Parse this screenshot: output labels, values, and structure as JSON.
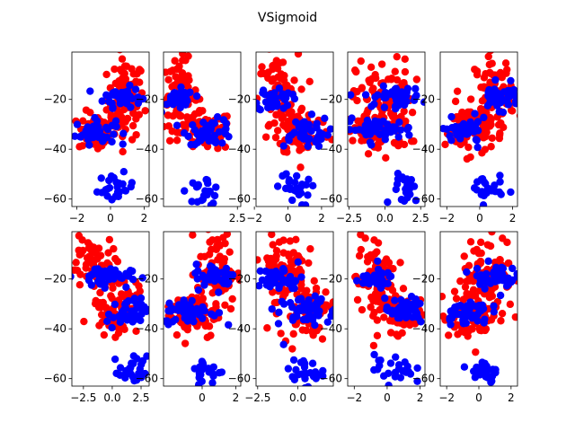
{
  "title": "VSigmoid",
  "colors": {
    "series_a": "#ff0000",
    "series_b": "#0000ff",
    "spine": "#000000"
  },
  "chart_data": {
    "type": "scatter",
    "title": "VSigmoid",
    "layout": "2 rows x 5 columns",
    "grid": false,
    "legend": "none",
    "series_colors": [
      "red",
      "blue"
    ],
    "panels": [
      {
        "row": 1,
        "col": 1,
        "xlim": [
          -2.3,
          2.3
        ],
        "ylim": [
          -63,
          -1
        ],
        "xticks": [
          -2,
          0,
          2
        ],
        "xtick_labels": [
          "−2",
          "0",
          "2"
        ],
        "yticks": [
          -20,
          -40,
          -60
        ],
        "ytick_labels": [
          "−20",
          "−40",
          "−60"
        ],
        "clusters": [
          {
            "series": 0,
            "cx": 0.9,
            "cy": -20,
            "sx": 0.55,
            "sy": 8,
            "n": 90
          },
          {
            "series": 0,
            "cx": -0.8,
            "cy": -33,
            "sx": 0.55,
            "sy": 4,
            "n": 60
          },
          {
            "series": 1,
            "cx": 0.7,
            "cy": -19,
            "sx": 0.55,
            "sy": 2,
            "n": 45
          },
          {
            "series": 1,
            "cx": -0.9,
            "cy": -33,
            "sx": 0.6,
            "sy": 2.5,
            "n": 50
          },
          {
            "series": 1,
            "cx": 0.3,
            "cy": -56,
            "sx": 0.55,
            "sy": 3,
            "n": 25
          }
        ]
      },
      {
        "row": 1,
        "col": 2,
        "xlim": [
          -1.9,
          2.7
        ],
        "ylim": [
          -63,
          -1
        ],
        "xticks": [
          2.5
        ],
        "xtick_labels": [
          "2.5"
        ],
        "yticks": [
          -20,
          -40,
          -60
        ],
        "ytick_labels": [
          "−20",
          "−40",
          "−60"
        ],
        "clusters": [
          {
            "series": 0,
            "cx": -0.9,
            "cy": -18,
            "sx": 0.5,
            "sy": 7,
            "n": 80
          },
          {
            "series": 0,
            "cx": 0.6,
            "cy": -33,
            "sx": 0.8,
            "sy": 4,
            "n": 70
          },
          {
            "series": 1,
            "cx": -1.0,
            "cy": -20,
            "sx": 0.45,
            "sy": 2,
            "n": 40
          },
          {
            "series": 1,
            "cx": 0.9,
            "cy": -33,
            "sx": 0.7,
            "sy": 2.5,
            "n": 45
          },
          {
            "series": 1,
            "cx": 0.5,
            "cy": -57,
            "sx": 0.5,
            "sy": 3,
            "n": 25
          }
        ]
      },
      {
        "row": 1,
        "col": 3,
        "xlim": [
          -1.9,
          2.7
        ],
        "ylim": [
          -63,
          -1
        ],
        "xticks": [
          -2,
          0,
          2
        ],
        "xtick_labels": [
          "−2",
          "0",
          "2"
        ],
        "yticks": [
          -20,
          -40,
          -60
        ],
        "ytick_labels": [
          "−20",
          "−40",
          "−60"
        ],
        "clusters": [
          {
            "series": 0,
            "cx": -0.6,
            "cy": -20,
            "sx": 0.6,
            "sy": 9,
            "n": 80
          },
          {
            "series": 0,
            "cx": 0.9,
            "cy": -33,
            "sx": 0.8,
            "sy": 5,
            "n": 70
          },
          {
            "series": 1,
            "cx": -0.8,
            "cy": -20,
            "sx": 0.5,
            "sy": 2.5,
            "n": 40
          },
          {
            "series": 1,
            "cx": 0.9,
            "cy": -33,
            "sx": 0.8,
            "sy": 3,
            "n": 45
          },
          {
            "series": 1,
            "cx": 0.3,
            "cy": -56,
            "sx": 0.5,
            "sy": 3.5,
            "n": 25
          }
        ]
      },
      {
        "row": 1,
        "col": 4,
        "xlim": [
          -2.6,
          2.8
        ],
        "ylim": [
          -63,
          -1
        ],
        "xticks": [
          -2.5,
          0.0,
          2.5
        ],
        "xtick_labels": [
          "−2.5",
          "0.0",
          "2.5"
        ],
        "yticks": [
          -20,
          -40,
          -60
        ],
        "ytick_labels": [
          "−20",
          "−40",
          "−60"
        ],
        "clusters": [
          {
            "series": 0,
            "cx": 0.0,
            "cy": -20,
            "sx": 1.0,
            "sy": 8,
            "n": 85
          },
          {
            "series": 0,
            "cx": -0.5,
            "cy": -33,
            "sx": 1.1,
            "sy": 4,
            "n": 70
          },
          {
            "series": 1,
            "cx": 0.6,
            "cy": -19,
            "sx": 1.0,
            "sy": 2,
            "n": 50
          },
          {
            "series": 1,
            "cx": -0.4,
            "cy": -32,
            "sx": 1.2,
            "sy": 2,
            "n": 50
          },
          {
            "series": 1,
            "cx": 1.6,
            "cy": -56,
            "sx": 0.5,
            "sy": 3,
            "n": 25
          }
        ]
      },
      {
        "row": 1,
        "col": 5,
        "xlim": [
          -2.4,
          2.3
        ],
        "ylim": [
          -63,
          -1
        ],
        "xticks": [
          -2,
          0,
          2
        ],
        "xtick_labels": [
          "−2",
          "0",
          "2"
        ],
        "yticks": [
          -20,
          -40,
          -60
        ],
        "ytick_labels": [
          "−20",
          "−40",
          "−60"
        ],
        "clusters": [
          {
            "series": 0,
            "cx": 0.9,
            "cy": -18,
            "sx": 0.6,
            "sy": 8,
            "n": 80
          },
          {
            "series": 0,
            "cx": -0.7,
            "cy": -32,
            "sx": 0.7,
            "sy": 5,
            "n": 65
          },
          {
            "series": 1,
            "cx": 1.2,
            "cy": -19,
            "sx": 0.6,
            "sy": 2.5,
            "n": 45
          },
          {
            "series": 1,
            "cx": -0.9,
            "cy": -33,
            "sx": 0.7,
            "sy": 2.5,
            "n": 45
          },
          {
            "series": 1,
            "cx": 0.4,
            "cy": -56,
            "sx": 0.5,
            "sy": 3,
            "n": 25
          }
        ]
      },
      {
        "row": 2,
        "col": 1,
        "xlim": [
          -3.5,
          3.2
        ],
        "ylim": [
          -63,
          -1
        ],
        "xticks": [
          -2.5,
          0.0,
          2.5
        ],
        "xtick_labels": [
          "−2.5",
          "0.0",
          "2.5"
        ],
        "yticks": [
          -20,
          -40,
          -60
        ],
        "ytick_labels": [
          "−20",
          "−40",
          "−60"
        ],
        "clusters": [
          {
            "series": 0,
            "cx": -1.8,
            "cy": -12,
            "sx": 1.0,
            "sy": 5,
            "n": 50
          },
          {
            "series": 0,
            "cx": 0.2,
            "cy": -30,
            "sx": 1.0,
            "sy": 6,
            "n": 80
          },
          {
            "series": 1,
            "cx": -0.8,
            "cy": -19,
            "sx": 1.2,
            "sy": 2,
            "n": 50
          },
          {
            "series": 1,
            "cx": 1.3,
            "cy": -34,
            "sx": 0.9,
            "sy": 3,
            "n": 45
          },
          {
            "series": 1,
            "cx": 1.8,
            "cy": -57,
            "sx": 0.6,
            "sy": 3,
            "n": 25
          }
        ]
      },
      {
        "row": 2,
        "col": 2,
        "xlim": [
          -2.3,
          2.3
        ],
        "ylim": [
          -63,
          -1
        ],
        "xticks": [
          0,
          2
        ],
        "xtick_labels": [
          "0",
          "2"
        ],
        "yticks": [
          -20,
          -40,
          -60
        ],
        "ytick_labels": [
          "−20",
          "−40",
          "−60"
        ],
        "clusters": [
          {
            "series": 0,
            "cx": 0.9,
            "cy": -17,
            "sx": 0.6,
            "sy": 8,
            "n": 80
          },
          {
            "series": 0,
            "cx": -0.6,
            "cy": -34,
            "sx": 0.8,
            "sy": 5,
            "n": 70
          },
          {
            "series": 1,
            "cx": 0.8,
            "cy": -19,
            "sx": 0.6,
            "sy": 2.5,
            "n": 45
          },
          {
            "series": 1,
            "cx": -0.7,
            "cy": -33,
            "sx": 0.8,
            "sy": 2.5,
            "n": 50
          },
          {
            "series": 1,
            "cx": 0.3,
            "cy": -57,
            "sx": 0.5,
            "sy": 2.5,
            "n": 25
          }
        ]
      },
      {
        "row": 2,
        "col": 3,
        "xlim": [
          -2.6,
          2.2
        ],
        "ylim": [
          -63,
          -1
        ],
        "xticks": [
          -2.5,
          0.0
        ],
        "xtick_labels": [
          "−2.5",
          "0.0"
        ],
        "yticks": [
          -20,
          -40,
          -60
        ],
        "ytick_labels": [
          "−20",
          "−40",
          "−60"
        ],
        "clusters": [
          {
            "series": 0,
            "cx": -0.9,
            "cy": -15,
            "sx": 0.7,
            "sy": 7,
            "n": 75
          },
          {
            "series": 0,
            "cx": 0.6,
            "cy": -33,
            "sx": 0.9,
            "sy": 5,
            "n": 70
          },
          {
            "series": 1,
            "cx": -1.1,
            "cy": -20,
            "sx": 0.7,
            "sy": 2.5,
            "n": 45
          },
          {
            "series": 1,
            "cx": 0.6,
            "cy": -33,
            "sx": 0.9,
            "sy": 3,
            "n": 50
          },
          {
            "series": 1,
            "cx": 0.3,
            "cy": -57,
            "sx": 0.6,
            "sy": 3,
            "n": 25
          }
        ]
      },
      {
        "row": 2,
        "col": 4,
        "xlim": [
          -2.4,
          2.3
        ],
        "ylim": [
          -63,
          -1
        ],
        "xticks": [
          -2,
          0,
          2
        ],
        "xtick_labels": [
          "−2",
          "0",
          "2"
        ],
        "yticks": [
          -20,
          -40,
          -60
        ],
        "ytick_labels": [
          "−20",
          "−40",
          "−60"
        ],
        "clusters": [
          {
            "series": 0,
            "cx": -0.7,
            "cy": -20,
            "sx": 0.6,
            "sy": 9,
            "n": 80
          },
          {
            "series": 0,
            "cx": 0.8,
            "cy": -33,
            "sx": 0.7,
            "sy": 4,
            "n": 65
          },
          {
            "series": 1,
            "cx": -0.8,
            "cy": -20,
            "sx": 0.6,
            "sy": 2,
            "n": 35
          },
          {
            "series": 1,
            "cx": 1.1,
            "cy": -33,
            "sx": 0.6,
            "sy": 2.5,
            "n": 45
          },
          {
            "series": 1,
            "cx": 0.4,
            "cy": -56,
            "sx": 0.6,
            "sy": 3,
            "n": 25
          }
        ]
      },
      {
        "row": 2,
        "col": 5,
        "xlim": [
          -2.4,
          2.4
        ],
        "ylim": [
          -63,
          -1
        ],
        "xticks": [
          -2,
          0,
          2
        ],
        "xtick_labels": [
          "−2",
          "0",
          "2"
        ],
        "yticks": [
          -20,
          -40,
          -60
        ],
        "ytick_labels": [
          "−20",
          "−40",
          "−60"
        ],
        "clusters": [
          {
            "series": 0,
            "cx": 0.6,
            "cy": -17,
            "sx": 0.8,
            "sy": 8,
            "n": 80
          },
          {
            "series": 0,
            "cx": -0.3,
            "cy": -34,
            "sx": 1.0,
            "sy": 5,
            "n": 70
          },
          {
            "series": 1,
            "cx": 0.9,
            "cy": -19,
            "sx": 0.7,
            "sy": 2.5,
            "n": 45
          },
          {
            "series": 1,
            "cx": -0.8,
            "cy": -33,
            "sx": 0.7,
            "sy": 2.5,
            "n": 50
          },
          {
            "series": 1,
            "cx": 0.3,
            "cy": -57,
            "sx": 0.5,
            "sy": 3,
            "n": 25
          }
        ]
      }
    ]
  }
}
